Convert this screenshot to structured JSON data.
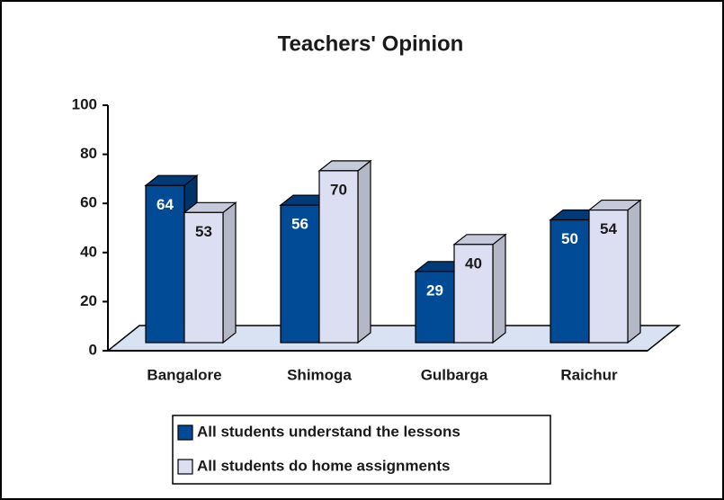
{
  "chart_data": {
    "type": "bar3d",
    "title": "Teachers' Opinion",
    "categories": [
      "Bangalore",
      "Shimoga",
      "Gulbarga",
      "Raichur"
    ],
    "series": [
      {
        "name": "All students understand the lessons",
        "color": "#004a96",
        "values": [
          64,
          56,
          29,
          50
        ]
      },
      {
        "name": "All students do home assignments",
        "color": "#dcdff2",
        "values": [
          53,
          70,
          40,
          54
        ]
      }
    ],
    "ylim": [
      0,
      100
    ],
    "yticks": [
      0,
      20,
      40,
      60,
      80,
      100
    ],
    "legend": "bottom"
  }
}
